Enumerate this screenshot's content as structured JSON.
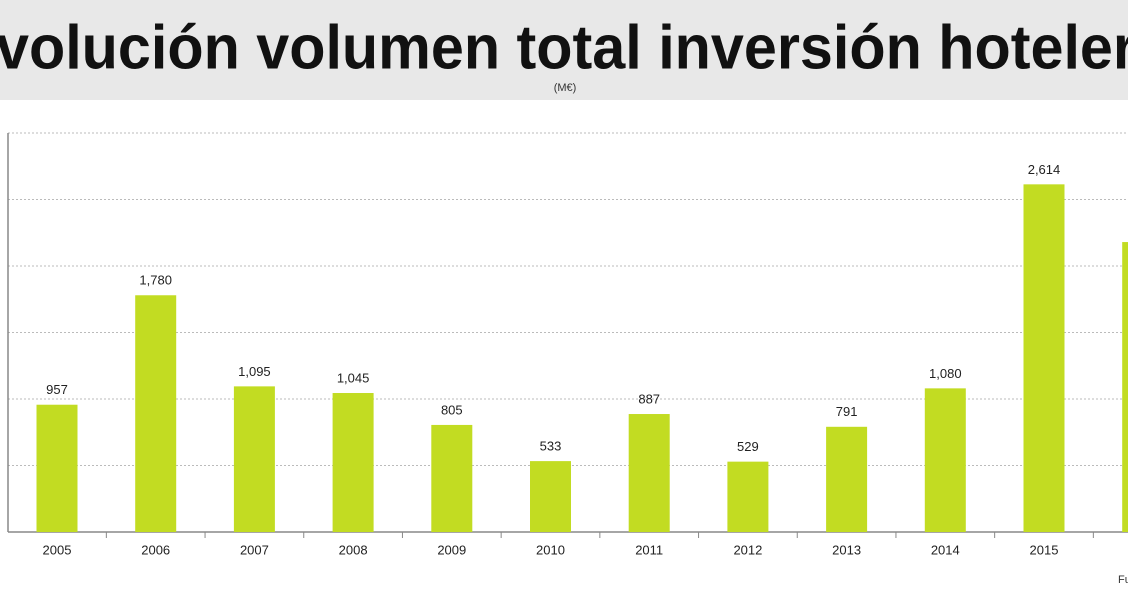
{
  "chart_data": {
    "type": "bar",
    "title": "volución volumen total inversión hoteler",
    "subtitle": "(M€)",
    "source": "Fu",
    "categories": [
      "2005",
      "2006",
      "2007",
      "2008",
      "2009",
      "2010",
      "2011",
      "2012",
      "2013",
      "2014",
      "2015",
      null
    ],
    "values": [
      957,
      1780,
      1095,
      1045,
      805,
      533,
      887,
      529,
      791,
      1080,
      2614,
      2180
    ],
    "value_labels": [
      "957",
      "1,780",
      "1,095",
      "1,045",
      "805",
      "533",
      "887",
      "529",
      "791",
      "1,080",
      "2,614",
      null
    ],
    "color": "#c2dc22",
    "ylim": [
      0,
      3000
    ],
    "yticks": [
      0,
      500,
      1000,
      1500,
      2000,
      2500,
      3000
    ],
    "grid": true
  }
}
